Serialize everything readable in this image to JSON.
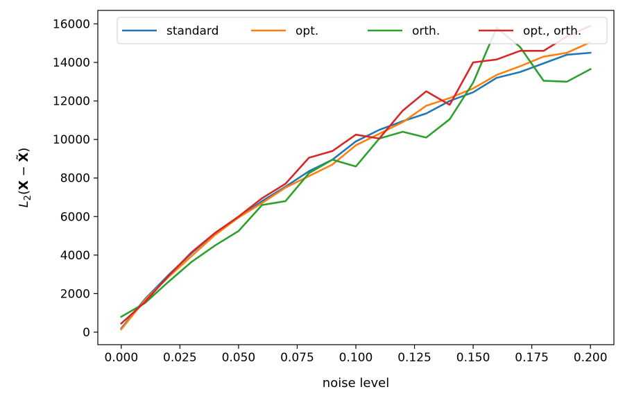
{
  "chart_data": {
    "type": "line",
    "xlabel": "noise level",
    "ylabel_parts": {
      "base": "L",
      "sub": "2",
      "paren_open": "(",
      "bold_x": "X",
      "minus": " − ",
      "bold_x_tilde": "X̃",
      "paren_close": ")"
    },
    "xlim": [
      -0.01,
      0.21
    ],
    "ylim": [
      -650,
      16700
    ],
    "grid": false,
    "legend_placement": "top, horizontal",
    "x_ticks": [
      0.0,
      0.025,
      0.05,
      0.075,
      0.1,
      0.125,
      0.15,
      0.175,
      0.2
    ],
    "x_tick_labels": [
      "0.000",
      "0.025",
      "0.050",
      "0.075",
      "0.100",
      "0.125",
      "0.150",
      "0.175",
      "0.200"
    ],
    "y_ticks": [
      0,
      2000,
      4000,
      6000,
      8000,
      10000,
      12000,
      14000,
      16000
    ],
    "y_tick_labels": [
      "0",
      "2000",
      "4000",
      "6000",
      "8000",
      "10000",
      "12000",
      "14000",
      "16000"
    ],
    "x": [
      0.0,
      0.01,
      0.02,
      0.03,
      0.04,
      0.05,
      0.06,
      0.07,
      0.08,
      0.09,
      0.1,
      0.11,
      0.12,
      0.13,
      0.14,
      0.15,
      0.16,
      0.17,
      0.18,
      0.19,
      0.2
    ],
    "series": [
      {
        "name": "standard",
        "color": "#1f77b4",
        "values": [
          200,
          1700,
          2950,
          4100,
          5150,
          5950,
          6800,
          7550,
          8350,
          8950,
          9900,
          10500,
          10950,
          11350,
          12000,
          12450,
          13200,
          13500,
          13950,
          14400,
          14500
        ]
      },
      {
        "name": "opt.",
        "color": "#ff7f0e",
        "values": [
          150,
          1650,
          2850,
          3950,
          5050,
          5950,
          6700,
          7500,
          8100,
          8700,
          9700,
          10300,
          10900,
          11750,
          12150,
          12650,
          13350,
          13800,
          14300,
          14500,
          15050
        ]
      },
      {
        "name": "orth.",
        "color": "#2ca02c",
        "values": [
          800,
          1500,
          2600,
          3650,
          4500,
          5250,
          6600,
          6800,
          8250,
          8950,
          8600,
          10050,
          10400,
          10100,
          11050,
          12950,
          15800,
          14800,
          13050,
          13000,
          13650
        ]
      },
      {
        "name": "opt., orth.",
        "color": "#d62728",
        "values": [
          450,
          1550,
          2900,
          4150,
          5150,
          6000,
          6950,
          7700,
          9050,
          9400,
          10250,
          10050,
          11500,
          12500,
          11800,
          14000,
          14150,
          14600,
          14600,
          15350,
          15900
        ]
      }
    ]
  }
}
